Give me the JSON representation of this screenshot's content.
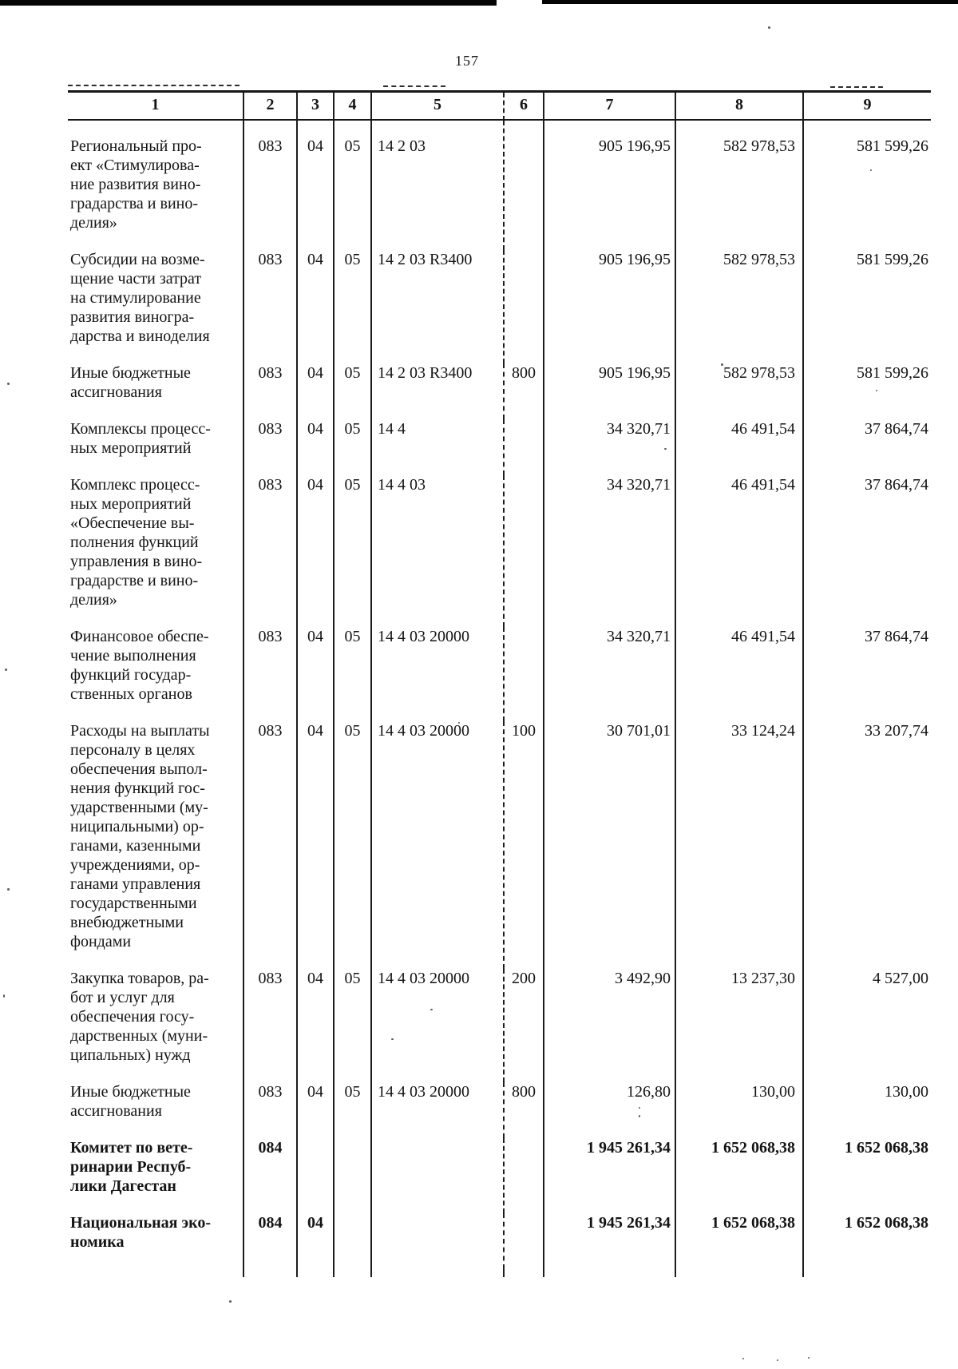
{
  "page": {
    "number": "157"
  },
  "colors": {
    "ink": "#141414",
    "paper": "#ffffff"
  },
  "table": {
    "header": [
      "1",
      "2",
      "3",
      "4",
      "5",
      "6",
      "7",
      "8",
      "9"
    ],
    "rows": [
      {
        "name": "Региональный про-\nект «Стимулирова-\nние развития вино-\nградарства и вино-\nделия»",
        "grbs": "083",
        "razdel": "04",
        "podrazdel": "05",
        "csr": "14 2 03",
        "vid": "",
        "sum1": "905 196,95",
        "sum2": "582 978,53",
        "sum3": "581 599,26",
        "bold": false
      },
      {
        "name": "Субсидии на возме-\nщение части затрат\nна стимулирование\nразвития виногра-\nдарства и виноделия",
        "grbs": "083",
        "razdel": "04",
        "podrazdel": "05",
        "csr": "14 2 03 R3400",
        "vid": "",
        "sum1": "905 196,95",
        "sum2": "582 978,53",
        "sum3": "581 599,26",
        "bold": false
      },
      {
        "name": "Иные бюджетные\nассигнования",
        "grbs": "083",
        "razdel": "04",
        "podrazdel": "05",
        "csr": "14 2 03 R3400",
        "vid": "800",
        "sum1": "905 196,95",
        "sum2": "582 978,53",
        "sum3": "581 599,26",
        "bold": false
      },
      {
        "name": "Комплексы процесс-\nных мероприятий",
        "grbs": "083",
        "razdel": "04",
        "podrazdel": "05",
        "csr": "14 4",
        "vid": "",
        "sum1": "34 320,71",
        "sum2": "46 491,54",
        "sum3": "37 864,74",
        "bold": false
      },
      {
        "name": "Комплекс процесс-\nных мероприятий\n«Обеспечение вы-\nполнения функций\nуправления в вино-\nградарстве и вино-\nделия»",
        "grbs": "083",
        "razdel": "04",
        "podrazdel": "05",
        "csr": "14 4 03",
        "vid": "",
        "sum1": "34 320,71",
        "sum2": "46 491,54",
        "sum3": "37 864,74",
        "bold": false
      },
      {
        "name": "Финансовое обеспе-\nчение выполнения\nфункций государ-\nственных органов",
        "grbs": "083",
        "razdel": "04",
        "podrazdel": "05",
        "csr": "14 4 03 20000",
        "vid": "",
        "sum1": "34 320,71",
        "sum2": "46 491,54",
        "sum3": "37 864,74",
        "bold": false
      },
      {
        "name": "Расходы на выплаты\nперсоналу в целях\nобеспечения выпол-\nнения функций гос-\nударственными (му-\nниципальными) ор-\nганами, казенными\nучреждениями, ор-\nганами управления\nгосударственными\nвнебюджетными\nфондами",
        "grbs": "083",
        "razdel": "04",
        "podrazdel": "05",
        "csr": "14 4 03 20000",
        "vid": "100",
        "sum1": "30 701,01",
        "sum2": "33 124,24",
        "sum3": "33 207,74",
        "bold": false
      },
      {
        "name": "Закупка товаров, ра-\nбот и услуг для\nобеспечения госу-\nдарственных (муни-\nципальных) нужд",
        "grbs": "083",
        "razdel": "04",
        "podrazdel": "05",
        "csr": "14 4 03 20000",
        "vid": "200",
        "sum1": "3 492,90",
        "sum2": "13 237,30",
        "sum3": "4 527,00",
        "bold": false
      },
      {
        "name": "Иные бюджетные\nассигнования",
        "grbs": "083",
        "razdel": "04",
        "podrazdel": "05",
        "csr": "14 4 03 20000",
        "vid": "800",
        "sum1": "126,80",
        "sum2": "130,00",
        "sum3": "130,00",
        "bold": false
      },
      {
        "name": "Комитет по вете-\nринарии Респуб-\nлики Дагестан",
        "grbs": "084",
        "razdel": "",
        "podrazdel": "",
        "csr": "",
        "vid": "",
        "sum1": "1 945 261,34",
        "sum2": "1 652 068,38",
        "sum3": "1 652 068,38",
        "bold": true
      },
      {
        "name": "Национальная эко-\nномика",
        "grbs": "084",
        "razdel": "04",
        "podrazdel": "",
        "csr": "",
        "vid": "",
        "sum1": "1 945 261,34",
        "sum2": "1 652 068,38",
        "sum3": "1 652 068,38",
        "bold": true
      }
    ]
  }
}
